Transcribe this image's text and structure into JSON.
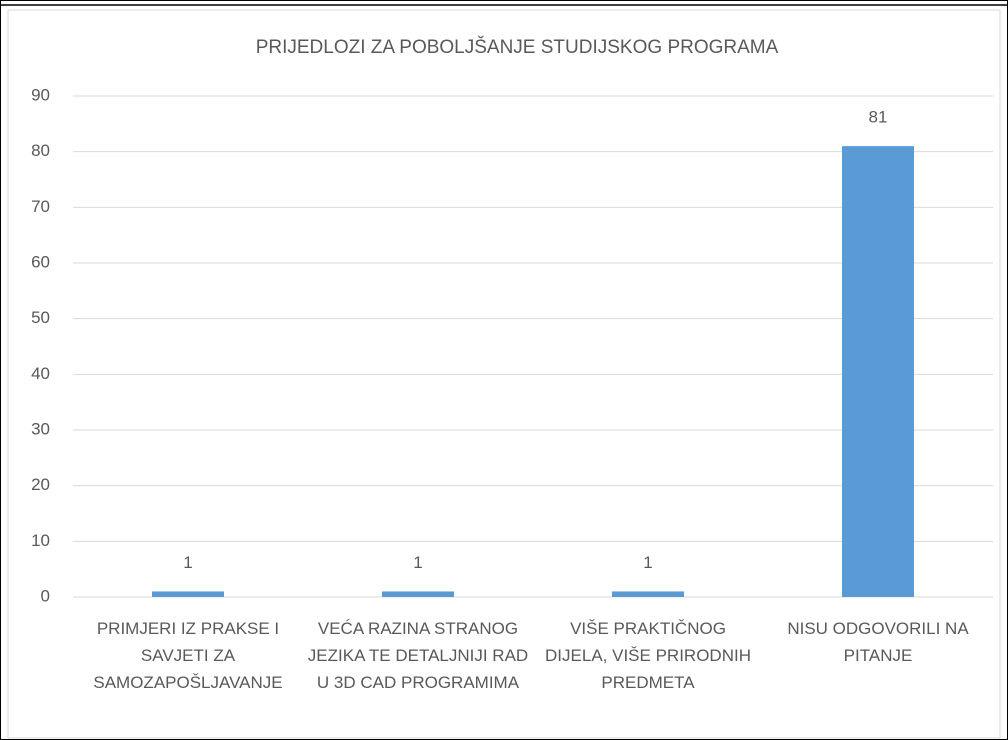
{
  "chart_data": {
    "type": "bar",
    "title": "PRIJEDLOZI ZA POBOLJŠANJE STUDIJSKOG PROGRAMA",
    "categories": [
      "PRIMJERI IZ PRAKSE I SAVJETI ZA SAMOZAPOŠLJAVANJE",
      "VEĆA RAZINA STRANOG JEZIKA TE DETALJNIJI RAD U 3D CAD PROGRAMIMA",
      "VIŠE PRAKTIČNOG DIJELA, VIŠE PRIRODNIH PREDMETA",
      "NISU ODGOVORILI NA PITANJE"
    ],
    "values": [
      1,
      1,
      1,
      81
    ],
    "color": "#5b9bd5",
    "ylim": [
      0,
      90
    ],
    "yticks": [
      0,
      10,
      20,
      30,
      40,
      50,
      60,
      70,
      80,
      90
    ],
    "grid": true,
    "data_labels": true
  }
}
